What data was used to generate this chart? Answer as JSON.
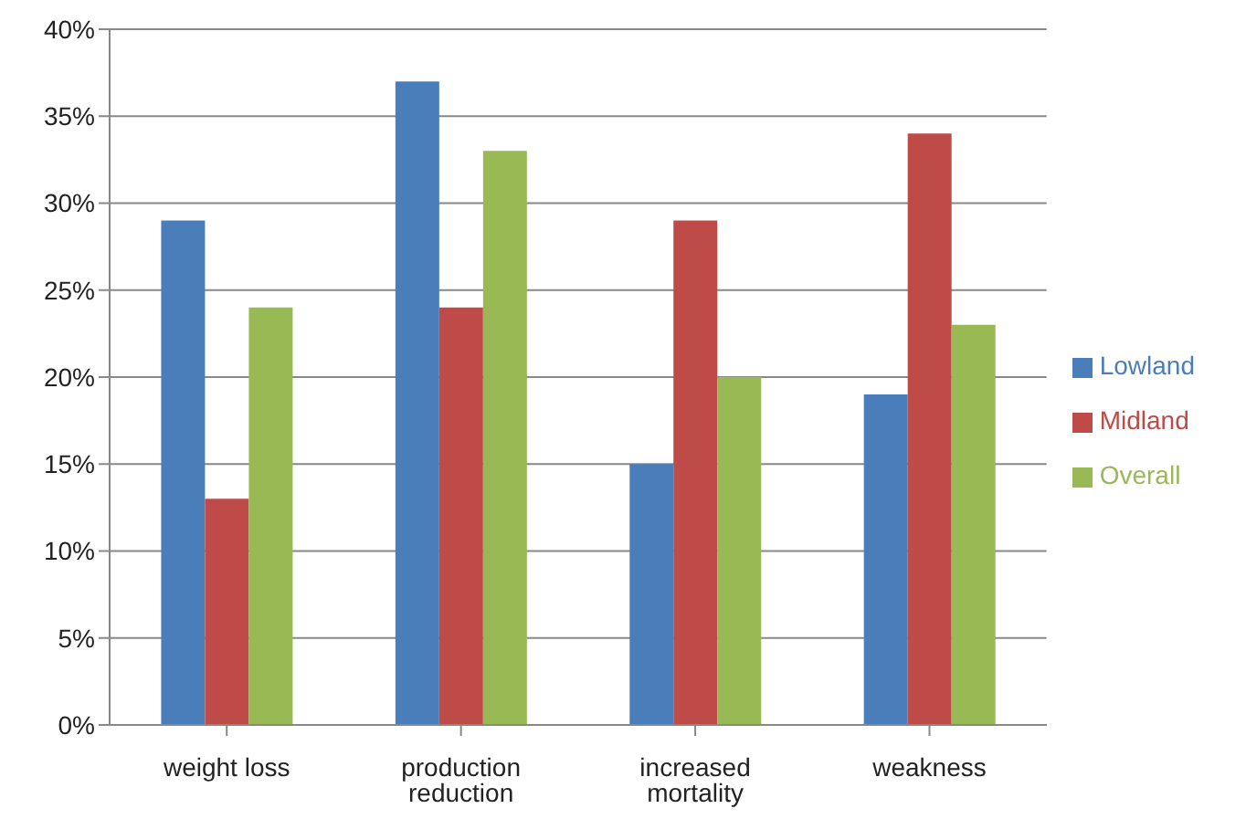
{
  "chart_data": {
    "type": "bar",
    "categories": [
      "weight loss",
      "production reduction",
      "increased mortality",
      "weakness"
    ],
    "series": [
      {
        "name": "Lowland",
        "color": "#4a7ebb",
        "values": [
          29,
          37,
          15,
          19
        ]
      },
      {
        "name": "Midland",
        "color": "#be4b48",
        "values": [
          13,
          24,
          29,
          34
        ]
      },
      {
        "name": "Overall",
        "color": "#98b954",
        "values": [
          24,
          33,
          20,
          23
        ]
      }
    ],
    "ylim": [
      0,
      40
    ],
    "yticks": [
      {
        "value": 0,
        "label": "0%"
      },
      {
        "value": 5,
        "label": "5%"
      },
      {
        "value": 10,
        "label": "10%"
      },
      {
        "value": 15,
        "label": "15%"
      },
      {
        "value": 20,
        "label": "20%"
      },
      {
        "value": 25,
        "label": "25%"
      },
      {
        "value": 30,
        "label": "30%"
      },
      {
        "value": 35,
        "label": "35%"
      },
      {
        "value": 40,
        "label": "40%"
      }
    ],
    "grid": "y",
    "legend": "right"
  }
}
